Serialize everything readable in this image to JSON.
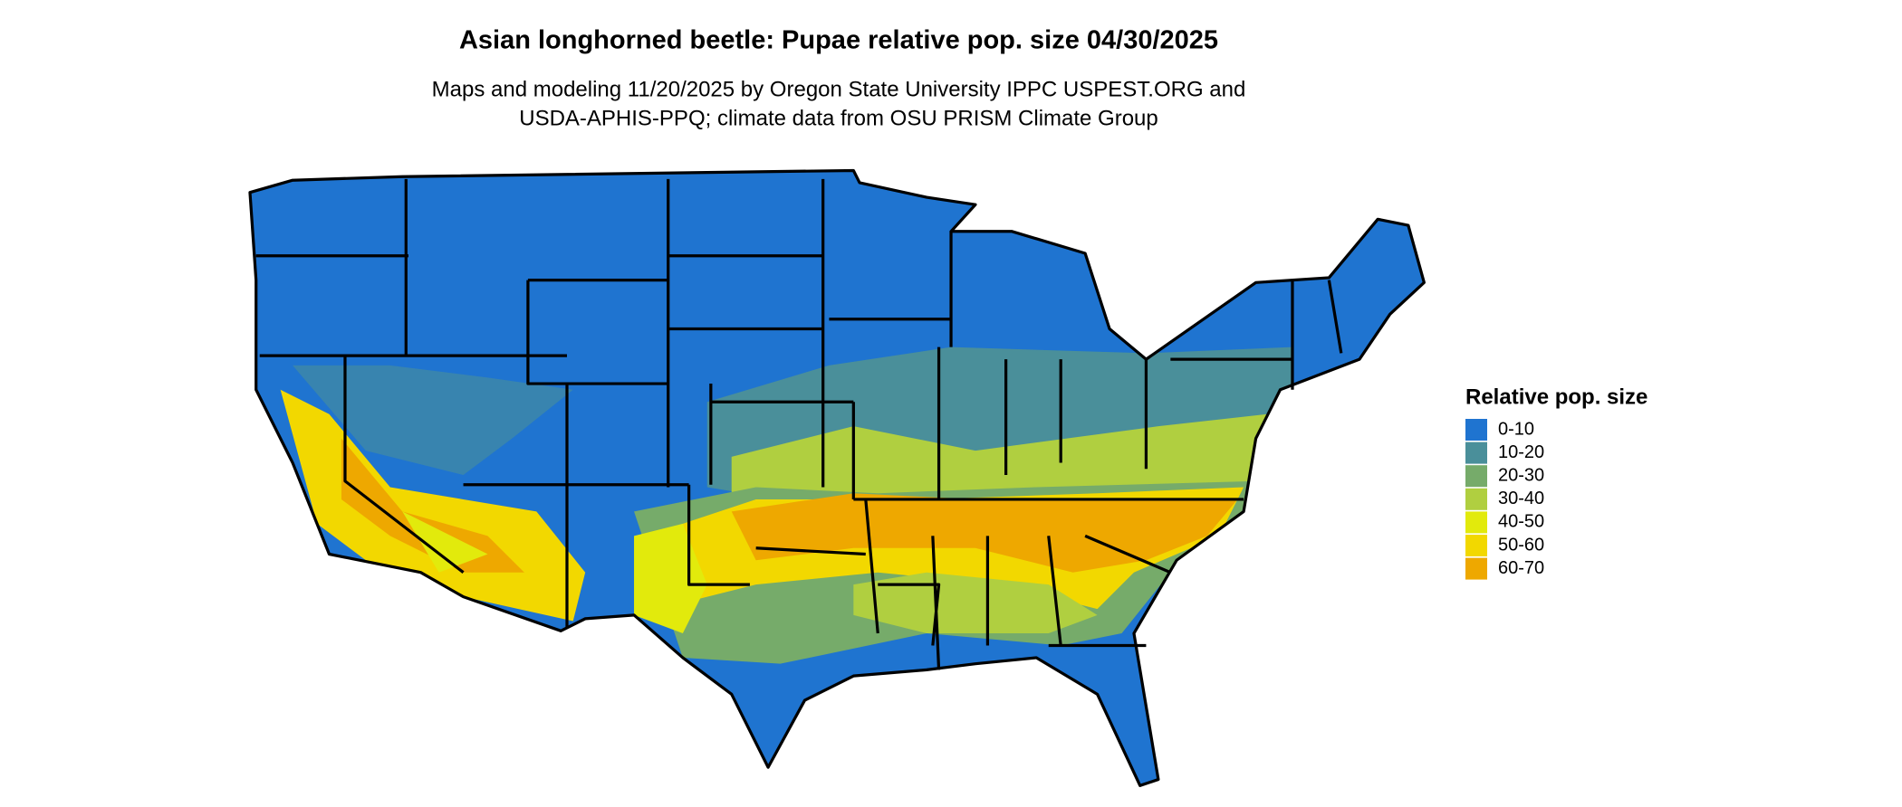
{
  "title": "Asian longhorned beetle: Pupae relative pop. size 04/30/2025",
  "subtitle": [
    "Maps and modeling 11/20/2025 by Oregon State University IPPC USPEST.ORG and",
    "USDA-APHIS-PPQ; climate data from OSU PRISM Climate Group"
  ],
  "legend": {
    "title": "Relative pop. size",
    "items": [
      {
        "label": "0-10",
        "color": "#1f74d0"
      },
      {
        "label": "10-20",
        "color": "#4a8f9a"
      },
      {
        "label": "20-30",
        "color": "#76ab6a"
      },
      {
        "label": "30-40",
        "color": "#b0cf40"
      },
      {
        "label": "40-50",
        "color": "#e2ea0c"
      },
      {
        "label": "50-60",
        "color": "#f2d800"
      },
      {
        "label": "60-70",
        "color": "#eea800"
      }
    ]
  }
}
